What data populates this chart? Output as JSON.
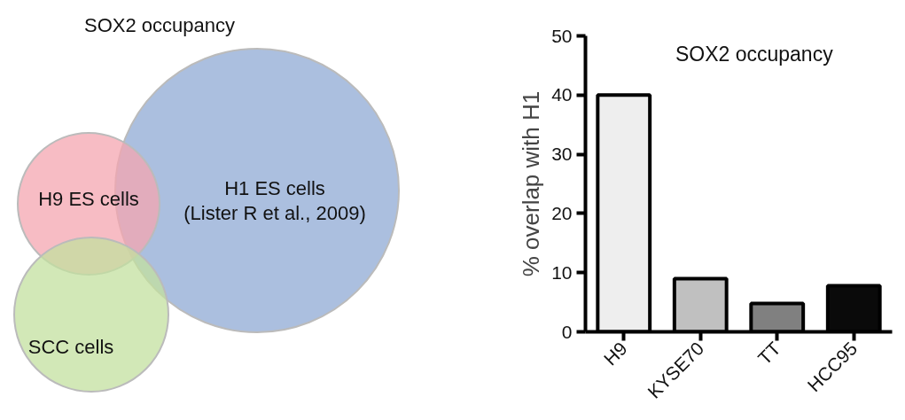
{
  "chart_data": [
    {
      "type": "other",
      "title": "SOX2 occupancy",
      "annotations": [
        "H9 ES cells",
        "H1 ES cells\n(Lister R et al., 2009)",
        "SCC cells"
      ]
    },
    {
      "type": "bar",
      "title": "SOX2 occupancy",
      "ylabel": "% overlap with H1",
      "categories": [
        "H9",
        "KYSE70",
        "TT",
        "HCC95"
      ],
      "values": [
        40,
        9,
        4.8,
        7.8
      ],
      "colors": [
        "#eeeeee",
        "#c0c0c0",
        "#808080",
        "#0a0a0a"
      ],
      "ylim": [
        0,
        50
      ],
      "yticks": [
        0,
        10,
        20,
        30,
        40,
        50
      ],
      "grid": false
    }
  ]
}
